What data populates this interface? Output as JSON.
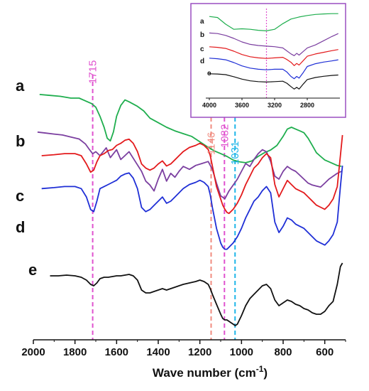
{
  "chart_data": {
    "type": "line",
    "title": "",
    "xlabel": "Wave number (cm",
    "xlabel_sup": "-1",
    "xlabel_close": ")",
    "ylabel": "",
    "xlim": [
      2000,
      500
    ],
    "x_reversed": true,
    "y_ticks": false,
    "x_ticks": [
      2000,
      1800,
      1600,
      1400,
      1200,
      1000,
      800,
      600
    ],
    "x_tick_labels": [
      "2000",
      "1800",
      "1600",
      "1400",
      "1200",
      "1000",
      "800",
      "600"
    ],
    "series": [
      {
        "label": "a",
        "color": "#1fae4e",
        "x": [
          1970,
          1920,
          1870,
          1820,
          1780,
          1740,
          1720,
          1700,
          1680,
          1660,
          1645,
          1630,
          1615,
          1600,
          1580,
          1560,
          1540,
          1500,
          1470,
          1440,
          1400,
          1360,
          1320,
          1280,
          1240,
          1200,
          1160,
          1130,
          1100,
          1070,
          1040,
          1010,
          980,
          950,
          920,
          890,
          860,
          830,
          800,
          780,
          760,
          740,
          720,
          700,
          680,
          660,
          640,
          620,
          600,
          580,
          560,
          540,
          520
        ],
        "y": [
          0.86,
          0.85,
          0.84,
          0.82,
          0.82,
          0.78,
          0.76,
          0.72,
          0.62,
          0.5,
          0.38,
          0.35,
          0.45,
          0.62,
          0.74,
          0.8,
          0.78,
          0.73,
          0.68,
          0.6,
          0.55,
          0.5,
          0.46,
          0.43,
          0.4,
          0.34,
          0.28,
          0.24,
          0.21,
          0.18,
          0.14,
          0.12,
          0.11,
          0.13,
          0.18,
          0.22,
          0.25,
          0.3,
          0.4,
          0.48,
          0.5,
          0.48,
          0.46,
          0.44,
          0.38,
          0.3,
          0.22,
          0.18,
          0.14,
          0.12,
          0.1,
          0.08,
          0.07
        ]
      },
      {
        "label": "b",
        "color": "#7b3fa0",
        "x": [
          1980,
          1940,
          1900,
          1860,
          1820,
          1780,
          1750,
          1730,
          1715,
          1700,
          1680,
          1650,
          1630,
          1600,
          1580,
          1560,
          1540,
          1510,
          1480,
          1460,
          1440,
          1420,
          1400,
          1380,
          1360,
          1340,
          1320,
          1300,
          1280,
          1250,
          1220,
          1190,
          1160,
          1140,
          1120,
          1100,
          1080,
          1060,
          1040,
          1020,
          1000,
          980,
          960,
          940,
          920,
          900,
          880,
          860,
          840,
          820,
          800,
          780,
          760,
          740,
          720,
          700,
          680,
          660,
          640,
          620,
          600,
          580,
          560,
          540,
          520
        ],
        "y": [
          0.9,
          0.89,
          0.88,
          0.87,
          0.85,
          0.83,
          0.78,
          0.72,
          0.68,
          0.7,
          0.66,
          0.74,
          0.64,
          0.72,
          0.62,
          0.66,
          0.7,
          0.6,
          0.5,
          0.4,
          0.36,
          0.3,
          0.42,
          0.52,
          0.4,
          0.48,
          0.44,
          0.5,
          0.55,
          0.52,
          0.56,
          0.58,
          0.6,
          0.52,
          0.38,
          0.25,
          0.22,
          0.3,
          0.36,
          0.42,
          0.5,
          0.58,
          0.55,
          0.62,
          0.68,
          0.72,
          0.7,
          0.6,
          0.45,
          0.42,
          0.5,
          0.55,
          0.52,
          0.5,
          0.46,
          0.42,
          0.38,
          0.36,
          0.35,
          0.34,
          0.38,
          0.42,
          0.45,
          0.48,
          0.5
        ]
      },
      {
        "label": "c",
        "color": "#e31a1c",
        "x": [
          1960,
          1900,
          1850,
          1800,
          1770,
          1745,
          1725,
          1710,
          1695,
          1680,
          1660,
          1640,
          1620,
          1600,
          1580,
          1560,
          1540,
          1520,
          1500,
          1480,
          1460,
          1440,
          1420,
          1400,
          1380,
          1360,
          1340,
          1320,
          1300,
          1280,
          1250,
          1220,
          1200,
          1180,
          1160,
          1150,
          1140,
          1120,
          1100,
          1090,
          1080,
          1070,
          1060,
          1040,
          1020,
          1000,
          980,
          960,
          940,
          920,
          900,
          880,
          860,
          840,
          820,
          800,
          780,
          760,
          740,
          720,
          700,
          680,
          660,
          640,
          620,
          600,
          580,
          560,
          540,
          525,
          515
        ],
        "y": [
          0.8,
          0.81,
          0.82,
          0.82,
          0.8,
          0.72,
          0.64,
          0.66,
          0.74,
          0.8,
          0.82,
          0.85,
          0.86,
          0.9,
          0.92,
          0.95,
          0.96,
          0.92,
          0.84,
          0.72,
          0.68,
          0.66,
          0.68,
          0.72,
          0.75,
          0.7,
          0.72,
          0.76,
          0.8,
          0.84,
          0.88,
          0.9,
          0.92,
          0.9,
          0.86,
          0.8,
          0.7,
          0.5,
          0.38,
          0.32,
          0.28,
          0.25,
          0.24,
          0.28,
          0.34,
          0.42,
          0.52,
          0.6,
          0.68,
          0.72,
          0.78,
          0.82,
          0.78,
          0.52,
          0.4,
          0.48,
          0.56,
          0.52,
          0.48,
          0.46,
          0.44,
          0.4,
          0.36,
          0.32,
          0.3,
          0.28,
          0.32,
          0.38,
          0.5,
          0.8,
          1.0
        ]
      },
      {
        "label": "d",
        "color": "#1f2fd6",
        "x": [
          1960,
          1900,
          1850,
          1800,
          1770,
          1745,
          1725,
          1710,
          1695,
          1680,
          1660,
          1640,
          1620,
          1600,
          1580,
          1560,
          1540,
          1520,
          1500,
          1480,
          1460,
          1440,
          1420,
          1400,
          1380,
          1360,
          1340,
          1320,
          1300,
          1280,
          1250,
          1220,
          1200,
          1180,
          1160,
          1150,
          1140,
          1120,
          1100,
          1090,
          1080,
          1070,
          1060,
          1040,
          1020,
          1000,
          980,
          960,
          940,
          920,
          900,
          880,
          860,
          840,
          820,
          800,
          780,
          760,
          740,
          720,
          700,
          680,
          660,
          640,
          620,
          600,
          580,
          560,
          540,
          525,
          515
        ],
        "y": [
          0.78,
          0.79,
          0.8,
          0.8,
          0.78,
          0.7,
          0.58,
          0.56,
          0.66,
          0.78,
          0.8,
          0.82,
          0.84,
          0.86,
          0.9,
          0.92,
          0.93,
          0.88,
          0.78,
          0.6,
          0.56,
          0.58,
          0.62,
          0.66,
          0.7,
          0.64,
          0.66,
          0.7,
          0.74,
          0.78,
          0.82,
          0.84,
          0.86,
          0.84,
          0.8,
          0.72,
          0.6,
          0.4,
          0.26,
          0.22,
          0.2,
          0.2,
          0.22,
          0.26,
          0.32,
          0.4,
          0.5,
          0.58,
          0.66,
          0.7,
          0.76,
          0.8,
          0.74,
          0.46,
          0.36,
          0.42,
          0.5,
          0.48,
          0.44,
          0.42,
          0.4,
          0.36,
          0.32,
          0.28,
          0.26,
          0.24,
          0.28,
          0.34,
          0.46,
          0.8,
          1.0
        ]
      },
      {
        "label": "e",
        "color": "#111111",
        "x": [
          1920,
          1880,
          1840,
          1800,
          1770,
          1745,
          1725,
          1710,
          1695,
          1680,
          1660,
          1640,
          1620,
          1600,
          1580,
          1560,
          1540,
          1520,
          1500,
          1480,
          1460,
          1440,
          1420,
          1400,
          1380,
          1360,
          1340,
          1320,
          1300,
          1280,
          1250,
          1220,
          1200,
          1180,
          1160,
          1150,
          1140,
          1120,
          1100,
          1090,
          1080,
          1070,
          1060,
          1040,
          1030,
          1020,
          1000,
          980,
          960,
          940,
          920,
          900,
          880,
          860,
          840,
          820,
          800,
          780,
          760,
          740,
          720,
          700,
          680,
          660,
          640,
          620,
          600,
          580,
          560,
          540,
          525,
          515
        ],
        "y": [
          0.82,
          0.82,
          0.83,
          0.82,
          0.8,
          0.76,
          0.7,
          0.68,
          0.72,
          0.78,
          0.8,
          0.8,
          0.81,
          0.82,
          0.82,
          0.83,
          0.84,
          0.82,
          0.76,
          0.62,
          0.58,
          0.58,
          0.6,
          0.62,
          0.64,
          0.62,
          0.64,
          0.66,
          0.68,
          0.7,
          0.72,
          0.74,
          0.76,
          0.74,
          0.7,
          0.64,
          0.56,
          0.42,
          0.28,
          0.22,
          0.2,
          0.2,
          0.18,
          0.14,
          0.12,
          0.14,
          0.26,
          0.4,
          0.5,
          0.56,
          0.62,
          0.68,
          0.7,
          0.64,
          0.48,
          0.4,
          0.44,
          0.48,
          0.46,
          0.42,
          0.4,
          0.36,
          0.34,
          0.3,
          0.28,
          0.28,
          0.32,
          0.4,
          0.46,
          0.7,
          0.95,
          1.0
        ]
      }
    ],
    "reference_lines": [
      {
        "x": 1715,
        "label": "1715",
        "color": "#e052cf"
      },
      {
        "x": 1146,
        "label": "1146",
        "color": "#f08c80"
      },
      {
        "x": 1082,
        "label": "1082",
        "color": "#e052cf"
      },
      {
        "x": 1031,
        "label": "1031",
        "color": "#1fb6e8"
      }
    ],
    "inset": {
      "type": "line",
      "xlim": [
        4000,
        2400
      ],
      "x_reversed": true,
      "x_ticks": [
        4000,
        3600,
        3200,
        2800
      ],
      "x_tick_labels": [
        "4000",
        "3600",
        "3200",
        "2800"
      ],
      "reference_lines": [
        {
          "x": 3300,
          "color": "#e052cf"
        }
      ],
      "series": [
        {
          "label": "a",
          "color": "#1fae4e",
          "x": [
            4000,
            3900,
            3800,
            3700,
            3600,
            3500,
            3400,
            3300,
            3200,
            3100,
            3000,
            2900,
            2800,
            2700,
            2600,
            2500,
            2420
          ],
          "y": [
            0.8,
            0.76,
            0.5,
            0.3,
            0.32,
            0.3,
            0.26,
            0.24,
            0.3,
            0.52,
            0.7,
            0.78,
            0.84,
            0.88,
            0.9,
            0.91,
            0.91
          ]
        },
        {
          "label": "b",
          "color": "#7b3fa0",
          "x": [
            4000,
            3900,
            3800,
            3700,
            3600,
            3500,
            3400,
            3300,
            3200,
            3100,
            3050,
            3000,
            2960,
            2930,
            2900,
            2850,
            2800,
            2700,
            2600,
            2500,
            2420
          ],
          "y": [
            0.8,
            0.78,
            0.72,
            0.62,
            0.5,
            0.42,
            0.38,
            0.36,
            0.34,
            0.3,
            0.2,
            0.1,
            0.04,
            0.12,
            0.06,
            0.18,
            0.3,
            0.4,
            0.54,
            0.68,
            0.78
          ]
        },
        {
          "label": "c",
          "color": "#e31a1c",
          "x": [
            4000,
            3900,
            3800,
            3700,
            3600,
            3500,
            3400,
            3300,
            3200,
            3100,
            3050,
            3000,
            2960,
            2930,
            2900,
            2850,
            2800,
            2700,
            2600,
            2500,
            2420
          ],
          "y": [
            0.8,
            0.78,
            0.74,
            0.64,
            0.52,
            0.44,
            0.4,
            0.38,
            0.4,
            0.42,
            0.34,
            0.24,
            0.12,
            0.2,
            0.14,
            0.3,
            0.46,
            0.54,
            0.6,
            0.66,
            0.7
          ]
        },
        {
          "label": "d",
          "color": "#1f2fd6",
          "x": [
            4000,
            3900,
            3800,
            3700,
            3600,
            3500,
            3400,
            3300,
            3200,
            3100,
            3050,
            3000,
            2960,
            2930,
            2900,
            2850,
            2800,
            2700,
            2600,
            2500,
            2420
          ],
          "y": [
            0.8,
            0.78,
            0.74,
            0.64,
            0.52,
            0.44,
            0.4,
            0.38,
            0.4,
            0.4,
            0.3,
            0.14,
            0.06,
            0.14,
            0.08,
            0.28,
            0.5,
            0.6,
            0.66,
            0.7,
            0.74
          ]
        },
        {
          "label": "e",
          "color": "#111111",
          "x": [
            4000,
            3900,
            3800,
            3700,
            3600,
            3500,
            3400,
            3300,
            3200,
            3100,
            3050,
            3000,
            2960,
            2930,
            2900,
            2850,
            2800,
            2700,
            2600,
            2500,
            2420
          ],
          "y": [
            0.8,
            0.79,
            0.76,
            0.66,
            0.54,
            0.46,
            0.42,
            0.4,
            0.42,
            0.44,
            0.34,
            0.18,
            0.06,
            0.14,
            0.06,
            0.3,
            0.52,
            0.62,
            0.68,
            0.72,
            0.74
          ]
        }
      ]
    }
  }
}
